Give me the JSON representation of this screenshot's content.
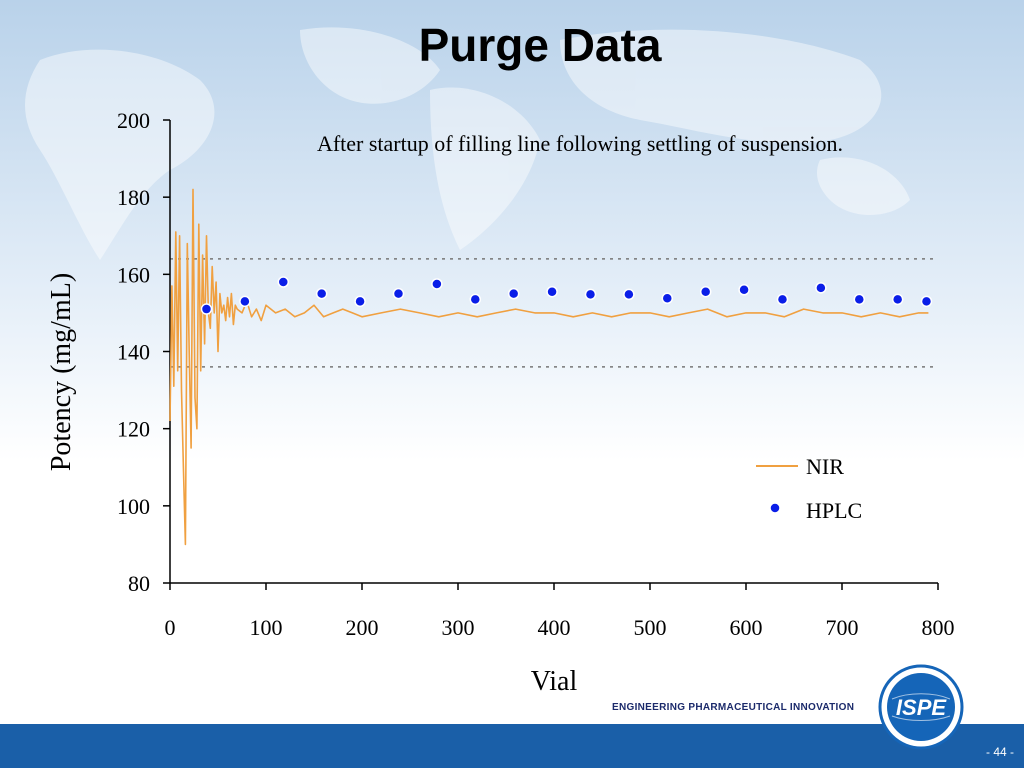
{
  "slide": {
    "title": "Purge Data",
    "tagline": "ENGINEERING PHARMACEUTICAL INNOVATION",
    "logo_text": "ISPE",
    "page_number": "- 44 -"
  },
  "colors": {
    "nir": "#f0a040",
    "hplc": "#0a1ee8",
    "bar": "#1a5fa8",
    "logo": "#1565b8"
  },
  "chart_data": {
    "type": "line",
    "annotation": "After startup of filling line following settling of suspension.",
    "xlabel": "Vial",
    "ylabel": "Potency (mg/mL)",
    "xlim": [
      0,
      800
    ],
    "ylim": [
      80,
      200
    ],
    "xticks": [
      "0",
      "100",
      "200",
      "300",
      "400",
      "500",
      "600",
      "700",
      "800"
    ],
    "yticks": [
      "80",
      "100",
      "120",
      "140",
      "160",
      "180",
      "200"
    ],
    "limit_lines": [
      164,
      136
    ],
    "legend": [
      {
        "label": "NIR",
        "kind": "line"
      },
      {
        "label": "HPLC",
        "kind": "marker"
      }
    ],
    "series": [
      {
        "name": "NIR",
        "x": [
          0,
          2,
          4,
          6,
          8,
          10,
          12,
          14,
          16,
          18,
          20,
          22,
          24,
          26,
          28,
          30,
          32,
          34,
          36,
          38,
          40,
          42,
          44,
          46,
          48,
          50,
          52,
          54,
          56,
          58,
          60,
          62,
          64,
          66,
          68,
          70,
          75,
          80,
          85,
          90,
          95,
          100,
          110,
          120,
          130,
          140,
          150,
          160,
          170,
          180,
          190,
          200,
          220,
          240,
          260,
          280,
          300,
          320,
          340,
          360,
          380,
          400,
          420,
          440,
          460,
          480,
          500,
          520,
          540,
          560,
          580,
          600,
          620,
          640,
          660,
          680,
          700,
          720,
          740,
          760,
          780,
          790
        ],
        "values": [
          122,
          157,
          131,
          171,
          135,
          170,
          130,
          110,
          90,
          168,
          140,
          115,
          182,
          128,
          120,
          173,
          135,
          165,
          142,
          170,
          150,
          146,
          162,
          150,
          158,
          140,
          155,
          150,
          152,
          148,
          154,
          149,
          155,
          147,
          152,
          151,
          150,
          153,
          149,
          151,
          148,
          152,
          150,
          151,
          149,
          150,
          152,
          149,
          150,
          151,
          150,
          149,
          150,
          151,
          150,
          149,
          150,
          149,
          150,
          151,
          150,
          150,
          149,
          150,
          149,
          150,
          150,
          149,
          150,
          151,
          149,
          150,
          150,
          149,
          151,
          150,
          150,
          149,
          150,
          149,
          150,
          150
        ]
      },
      {
        "name": "HPLC",
        "x": [
          38,
          78,
          118,
          158,
          198,
          238,
          278,
          318,
          358,
          398,
          438,
          478,
          518,
          558,
          598,
          638,
          678,
          718,
          758,
          788
        ],
        "values": [
          151,
          153,
          158,
          155,
          153,
          155,
          157.5,
          153.5,
          155,
          155.5,
          154.8,
          154.8,
          153.8,
          155.5,
          156,
          153.5,
          156.5,
          153.5,
          153.5,
          153
        ]
      }
    ]
  }
}
